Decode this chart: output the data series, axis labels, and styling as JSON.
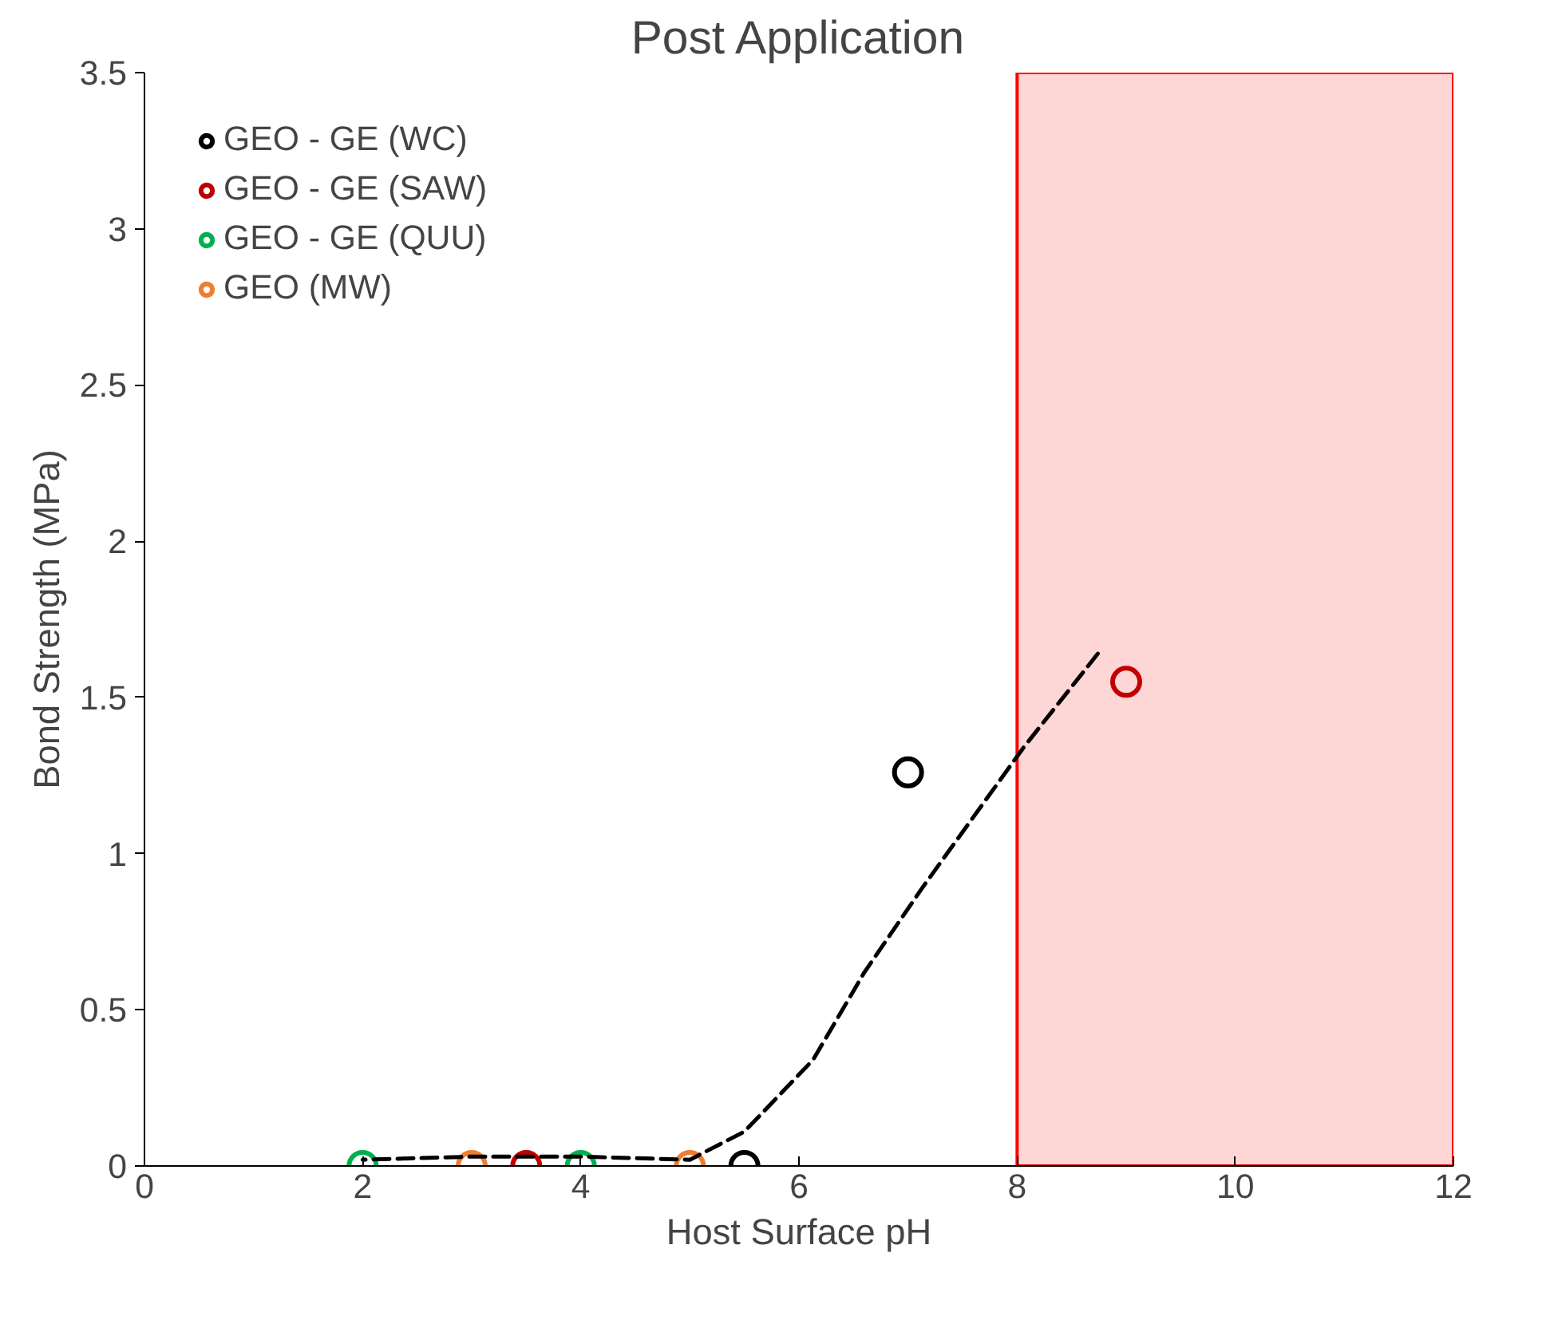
{
  "chart_data": {
    "type": "scatter",
    "title": "Post Application",
    "xlabel": "Host Surface pH",
    "ylabel": "Bond Strength (MPa)",
    "xlim": [
      0,
      12
    ],
    "xticks": [
      0,
      2,
      4,
      6,
      8,
      10,
      12
    ],
    "ylim": [
      0,
      3.5
    ],
    "yticks": [
      0,
      0.5,
      1,
      1.5,
      2,
      2.5,
      3,
      3.5
    ],
    "grid": false,
    "legend": "top left",
    "marker": "circle",
    "series": [
      {
        "name": "GEO - GE (WC)",
        "color": "#000000",
        "x": [
          5.5,
          7
        ],
        "values": [
          0,
          1.26
        ]
      },
      {
        "name": "GEO - GE (SAW)",
        "color": "#c00000",
        "x": [
          3.5,
          9
        ],
        "values": [
          0,
          1.55
        ]
      },
      {
        "name": "GEO - GE (QUU)",
        "color": "#00b050",
        "x": [
          2,
          4
        ],
        "values": [
          0,
          0
        ]
      },
      {
        "name": "GEO (MW)",
        "color": "#ed7d31",
        "x": [
          3,
          5
        ],
        "values": [
          0,
          0
        ]
      },
      {
        "type": "line",
        "color": "#000000",
        "line_style": "dashed",
        "marker": "none",
        "x": [
          2,
          3,
          4,
          5,
          5.5,
          6.13,
          6.6,
          7.13,
          8.06,
          8.74
        ],
        "values": [
          0.02,
          0.03,
          0.03,
          0.02,
          0.11,
          0.34,
          0.62,
          0.89,
          1.34,
          1.64
        ]
      }
    ],
    "bands": [
      {
        "axis": "x",
        "from": 8,
        "to": 12,
        "color": "#ff0000"
      }
    ]
  }
}
